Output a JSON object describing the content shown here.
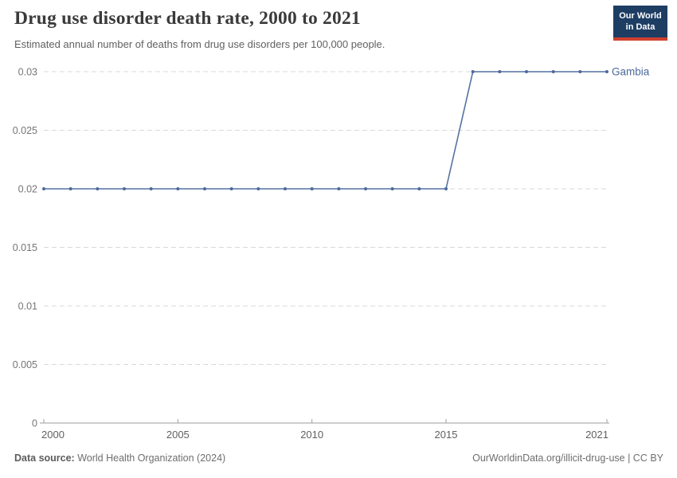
{
  "header": {
    "title": "Drug use disorder death rate, 2000 to 2021",
    "subtitle": "Estimated annual number of deaths from drug use disorders per 100,000 people.",
    "logo": {
      "line1": "Our World",
      "line2": "in Data"
    }
  },
  "chart_data": {
    "type": "line",
    "title": "Drug use disorder death rate, 2000 to 2021",
    "x": [
      2000,
      2001,
      2002,
      2003,
      2004,
      2005,
      2006,
      2007,
      2008,
      2009,
      2010,
      2011,
      2012,
      2013,
      2014,
      2015,
      2016,
      2017,
      2018,
      2019,
      2020,
      2021
    ],
    "series": [
      {
        "name": "Gambia",
        "color": "#4C6A9C",
        "values": [
          0.02,
          0.02,
          0.02,
          0.02,
          0.02,
          0.02,
          0.02,
          0.02,
          0.02,
          0.02,
          0.02,
          0.02,
          0.02,
          0.02,
          0.02,
          0.02,
          0.03,
          0.03,
          0.03,
          0.03,
          0.03,
          0.03
        ]
      }
    ],
    "xlabel": "",
    "ylabel": "",
    "xlim": [
      2000,
      2021
    ],
    "ylim": [
      0,
      0.03
    ],
    "x_ticks": [
      2000,
      2005,
      2010,
      2015,
      2021
    ],
    "y_ticks": [
      0,
      0.005,
      0.01,
      0.015,
      0.02,
      0.025,
      0.03
    ],
    "grid": "horizontal-dashed",
    "legend": "end-of-line-label",
    "markers": true
  },
  "footer": {
    "source_label": "Data source:",
    "source_value": "World Health Organization (2024)",
    "license": "OurWorldinData.org/illicit-drug-use | CC BY"
  },
  "colors": {
    "line": "#4C6A9C",
    "logo_bg": "#1d3d63",
    "logo_stripe": "#d0402e",
    "grid": "#d9d9d9",
    "axis": "#9e9e9e",
    "y_tick_label": "#757575",
    "x_tick_label": "#606060"
  }
}
